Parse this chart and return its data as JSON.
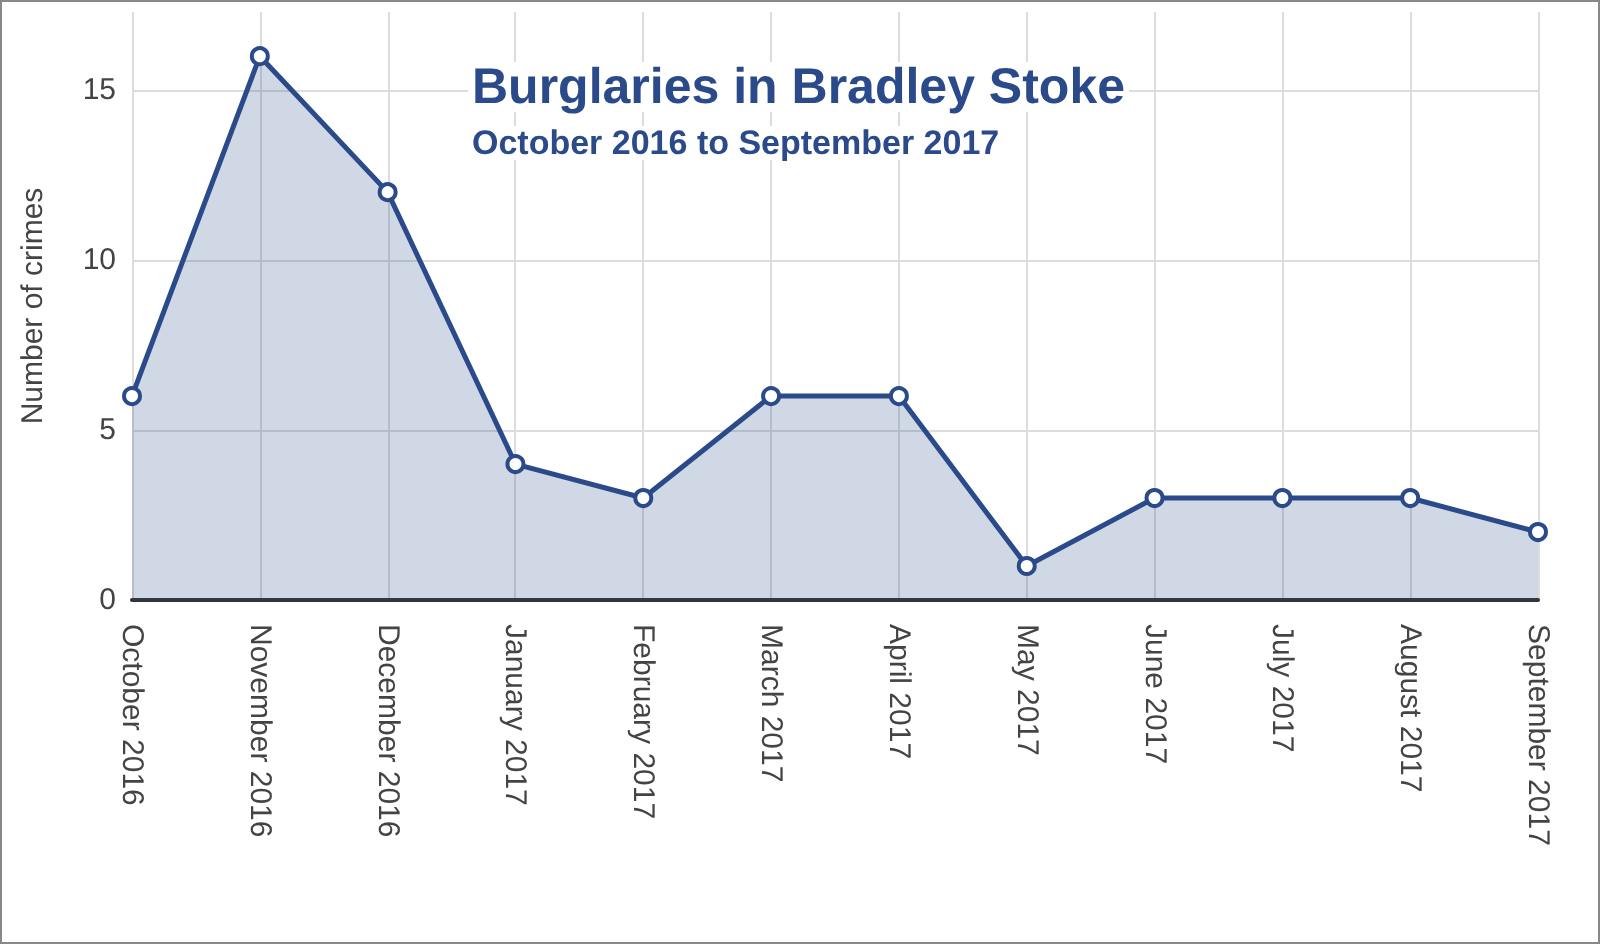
{
  "chart_data": {
    "type": "area",
    "title": "Burglaries in Bradley Stoke",
    "subtitle": "October 2016 to September 2017",
    "ylabel": "Number of crimes",
    "categories": [
      "October 2016",
      "November 2016",
      "December 2016",
      "January 2017",
      "February 2017",
      "March 2017",
      "April 2017",
      "May 2017",
      "June 2017",
      "July 2017",
      "August 2017",
      "September 2017"
    ],
    "series": [
      {
        "color": "#2a4a8a",
        "values": [
          6,
          16,
          12,
          4,
          3,
          6,
          6,
          1,
          3,
          3,
          3,
          2
        ]
      }
    ],
    "ylim": [
      0,
      17.3
    ],
    "yticks": [
      0,
      5,
      10,
      15
    ],
    "grid": true,
    "marker": "circle",
    "line_style": "solid"
  }
}
